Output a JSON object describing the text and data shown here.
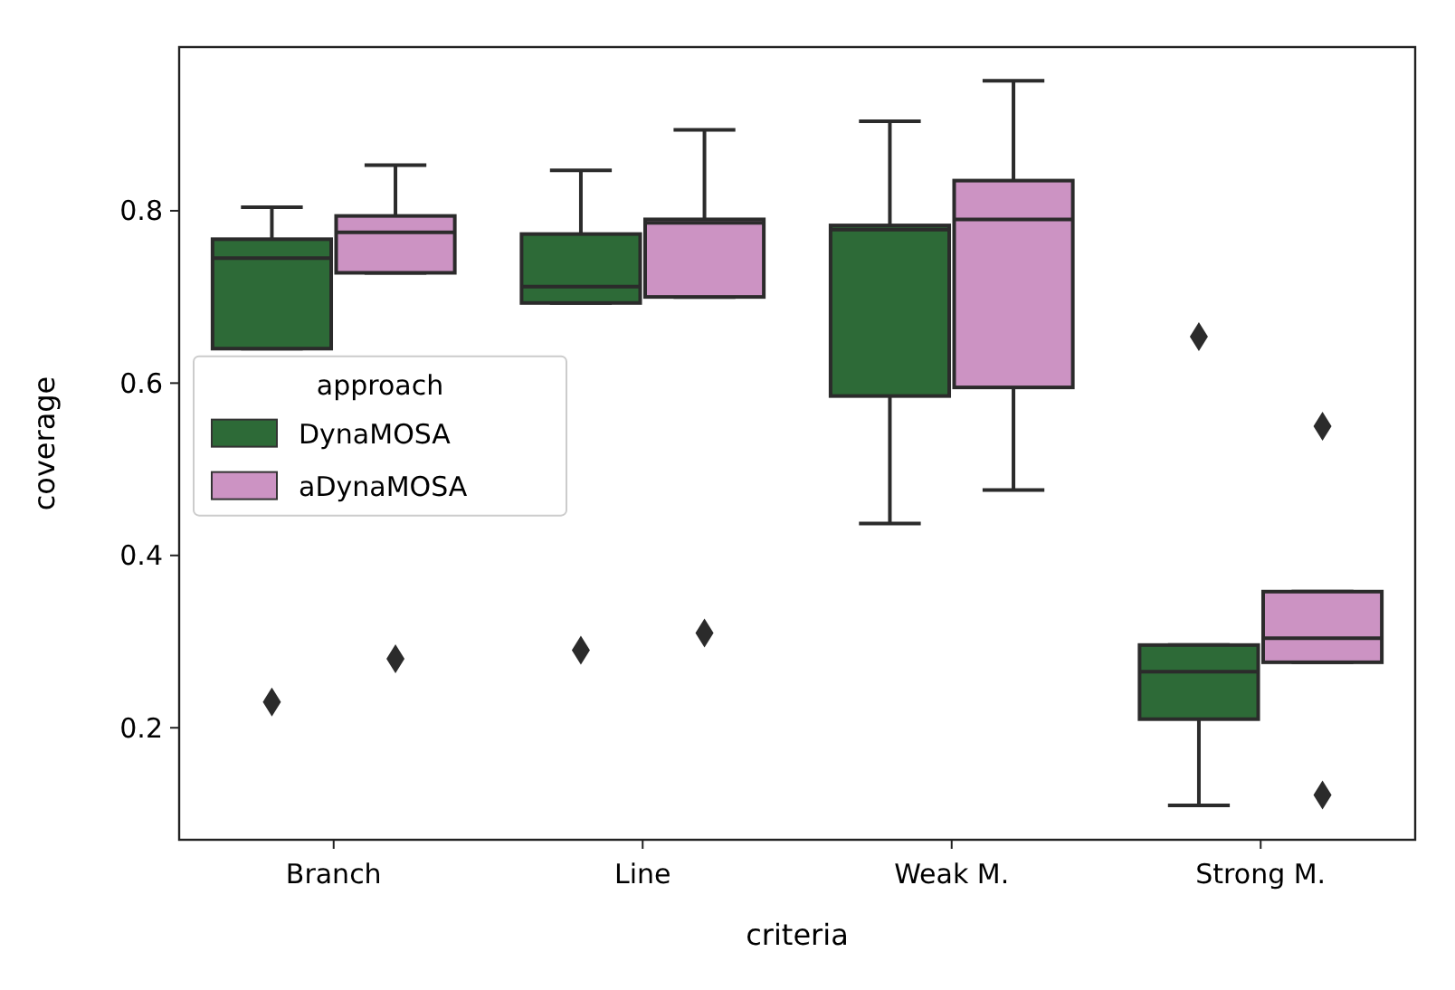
{
  "chart_data": {
    "type": "box",
    "xlabel": "criteria",
    "ylabel": "coverage",
    "categories": [
      "Branch",
      "Line",
      "Weak M.",
      "Strong M."
    ],
    "ylim": [
      0.07,
      0.99
    ],
    "yticks": [
      {
        "value": 0.2,
        "label": "0.2"
      },
      {
        "value": 0.4,
        "label": "0.4"
      },
      {
        "value": 0.6,
        "label": "0.6"
      },
      {
        "value": 0.8,
        "label": "0.8"
      }
    ],
    "legend": "left",
    "legend_title": "approach",
    "grid": false,
    "series": [
      {
        "name": "DynaMOSA",
        "color": "#2d6a37",
        "boxes": [
          {
            "low": 0.64,
            "q1": 0.64,
            "median": 0.745,
            "q3": 0.767,
            "high": 0.804,
            "outliers": [
              0.23
            ]
          },
          {
            "low": 0.693,
            "q1": 0.693,
            "median": 0.712,
            "q3": 0.773,
            "high": 0.847,
            "outliers": [
              0.29
            ]
          },
          {
            "low": 0.437,
            "q1": 0.585,
            "median": 0.778,
            "q3": 0.783,
            "high": 0.904
          },
          {
            "low": 0.11,
            "q1": 0.21,
            "median": 0.265,
            "q3": 0.296,
            "high": 0.296,
            "outliers": [
              0.654
            ]
          }
        ]
      },
      {
        "name": "aDynaMOSA",
        "color": "#cc93c3",
        "boxes": [
          {
            "low": 0.728,
            "q1": 0.728,
            "median": 0.775,
            "q3": 0.794,
            "high": 0.853,
            "outliers": [
              0.28
            ]
          },
          {
            "low": 0.7,
            "q1": 0.7,
            "median": 0.786,
            "q3": 0.79,
            "high": 0.894,
            "outliers": [
              0.31
            ]
          },
          {
            "low": 0.476,
            "q1": 0.595,
            "median": 0.79,
            "q3": 0.835,
            "high": 0.951
          },
          {
            "low": 0.276,
            "q1": 0.276,
            "median": 0.304,
            "q3": 0.358,
            "high": 0.358,
            "outliers": [
              0.55,
              0.122
            ]
          }
        ]
      }
    ]
  }
}
